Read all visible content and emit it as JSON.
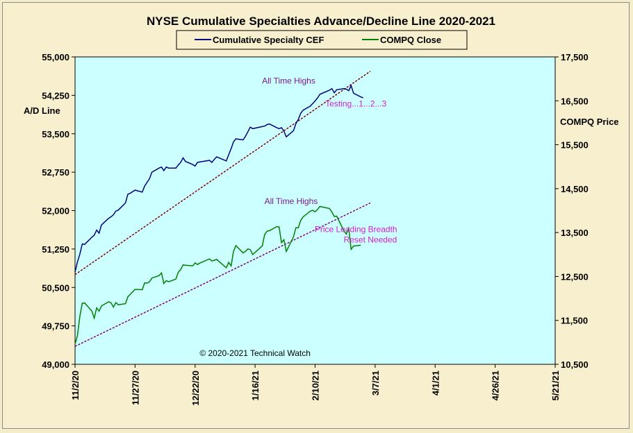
{
  "chart_data": {
    "type": "line",
    "title": "NYSE Cumulative  Specialties  Advance/Decline  Line  2020-2021",
    "y_left_label": "A/D Line",
    "y_right_label": "COMPQ Price",
    "x_ticks": [
      "11/2/20",
      "11/27/20",
      "12/22/20",
      "1/16/21",
      "2/10/21",
      "3/7/21",
      "4/1/21",
      "4/26/21",
      "5/21/21"
    ],
    "x_ticks_dates": [
      "2020-11-02",
      "2020-11-27",
      "2020-12-22",
      "2021-01-16",
      "2021-02-10",
      "2021-03-07",
      "2021-04-01",
      "2021-04-26",
      "2021-05-21"
    ],
    "xlim": [
      "2020-11-02",
      "2021-05-21"
    ],
    "y_left_ticks": [
      "49,000",
      "49,750",
      "50,500",
      "51,250",
      "52,000",
      "52,750",
      "53,500",
      "54,250",
      "55,000"
    ],
    "ylim_left": [
      49000,
      55000
    ],
    "y_right_ticks": [
      "10,500",
      "11,500",
      "12,500",
      "13,500",
      "14,500",
      "15,500",
      "16,500",
      "17,500"
    ],
    "ylim_right": [
      10500,
      17500
    ],
    "grid": false,
    "legend_position": "top-center",
    "colors": {
      "plot_background": "#ccffff",
      "page_background": "#f5ecc9",
      "ad_line": "#000080",
      "compq_line": "#008000",
      "ad_trendline": "#800000",
      "compq_trendline": "#800080",
      "annotation_purple": "#7a1a8c",
      "annotation_pink": "#d21bd2"
    },
    "series": [
      {
        "name": "Cumulative Specialty CEF",
        "axis": "left",
        "points": [
          [
            "2020-11-02",
            50800
          ],
          [
            "2020-11-03",
            51000
          ],
          [
            "2020-11-04",
            51150
          ],
          [
            "2020-11-05",
            51350
          ],
          [
            "2020-11-06",
            51340
          ],
          [
            "2020-11-09",
            51480
          ],
          [
            "2020-11-10",
            51520
          ],
          [
            "2020-11-11",
            51620
          ],
          [
            "2020-11-12",
            51560
          ],
          [
            "2020-11-13",
            51720
          ],
          [
            "2020-11-16",
            51850
          ],
          [
            "2020-11-17",
            51880
          ],
          [
            "2020-11-18",
            51920
          ],
          [
            "2020-11-19",
            51990
          ],
          [
            "2020-11-20",
            52010
          ],
          [
            "2020-11-23",
            52150
          ],
          [
            "2020-11-24",
            52320
          ],
          [
            "2020-11-25",
            52340
          ],
          [
            "2020-11-27",
            52400
          ],
          [
            "2020-11-30",
            52360
          ],
          [
            "2020-12-01",
            52480
          ],
          [
            "2020-12-02",
            52550
          ],
          [
            "2020-12-03",
            52620
          ],
          [
            "2020-12-04",
            52750
          ],
          [
            "2020-12-07",
            52830
          ],
          [
            "2020-12-08",
            52850
          ],
          [
            "2020-12-09",
            52780
          ],
          [
            "2020-12-10",
            52850
          ],
          [
            "2020-12-11",
            52830
          ],
          [
            "2020-12-14",
            52830
          ],
          [
            "2020-12-15",
            52890
          ],
          [
            "2020-12-16",
            52940
          ],
          [
            "2020-12-17",
            53030
          ],
          [
            "2020-12-18",
            52960
          ],
          [
            "2020-12-21",
            52900
          ],
          [
            "2020-12-22",
            52870
          ],
          [
            "2020-12-23",
            52940
          ],
          [
            "2020-12-24",
            52950
          ],
          [
            "2020-12-28",
            52980
          ],
          [
            "2020-12-29",
            52940
          ],
          [
            "2020-12-30",
            53000
          ],
          [
            "2020-12-31",
            53050
          ],
          [
            "2021-01-04",
            52970
          ],
          [
            "2021-01-05",
            53090
          ],
          [
            "2021-01-06",
            53210
          ],
          [
            "2021-01-07",
            53340
          ],
          [
            "2021-01-08",
            53400
          ],
          [
            "2021-01-11",
            53380
          ],
          [
            "2021-01-12",
            53450
          ],
          [
            "2021-01-13",
            53540
          ],
          [
            "2021-01-14",
            53630
          ],
          [
            "2021-01-15",
            53600
          ],
          [
            "2021-01-19",
            53640
          ],
          [
            "2021-01-20",
            53650
          ],
          [
            "2021-01-21",
            53680
          ],
          [
            "2021-01-22",
            53690
          ],
          [
            "2021-01-25",
            53620
          ],
          [
            "2021-01-26",
            53600
          ],
          [
            "2021-01-27",
            53620
          ],
          [
            "2021-01-28",
            53550
          ],
          [
            "2021-01-29",
            53440
          ],
          [
            "2021-02-01",
            53560
          ],
          [
            "2021-02-02",
            53700
          ],
          [
            "2021-02-03",
            53780
          ],
          [
            "2021-02-04",
            53900
          ],
          [
            "2021-02-05",
            53960
          ],
          [
            "2021-02-08",
            54040
          ],
          [
            "2021-02-09",
            54090
          ],
          [
            "2021-02-10",
            54140
          ],
          [
            "2021-02-11",
            54200
          ],
          [
            "2021-02-12",
            54270
          ],
          [
            "2021-02-16",
            54350
          ],
          [
            "2021-02-17",
            54380
          ],
          [
            "2021-02-18",
            54300
          ],
          [
            "2021-02-19",
            54360
          ],
          [
            "2021-02-22",
            54380
          ],
          [
            "2021-02-23",
            54370
          ],
          [
            "2021-02-24",
            54340
          ],
          [
            "2021-02-25",
            54440
          ],
          [
            "2021-02-26",
            54290
          ],
          [
            "2021-03-01",
            54220
          ],
          [
            "2021-03-02",
            54200
          ]
        ]
      },
      {
        "name": "COMPQ Close",
        "axis": "right",
        "points": [
          [
            "2020-11-02",
            10957
          ],
          [
            "2020-11-03",
            11161
          ],
          [
            "2020-11-04",
            11590
          ],
          [
            "2020-11-05",
            11890
          ],
          [
            "2020-11-06",
            11895
          ],
          [
            "2020-11-09",
            11713
          ],
          [
            "2020-11-10",
            11553
          ],
          [
            "2020-11-11",
            11786
          ],
          [
            "2020-11-12",
            11710
          ],
          [
            "2020-11-13",
            11829
          ],
          [
            "2020-11-16",
            11924
          ],
          [
            "2020-11-17",
            11899
          ],
          [
            "2020-11-18",
            11802
          ],
          [
            "2020-11-19",
            11905
          ],
          [
            "2020-11-20",
            11855
          ],
          [
            "2020-11-23",
            11881
          ],
          [
            "2020-11-24",
            12037
          ],
          [
            "2020-11-25",
            12094
          ],
          [
            "2020-11-27",
            12206
          ],
          [
            "2020-11-30",
            12199
          ],
          [
            "2020-12-01",
            12355
          ],
          [
            "2020-12-02",
            12349
          ],
          [
            "2020-12-03",
            12377
          ],
          [
            "2020-12-04",
            12464
          ],
          [
            "2020-12-07",
            12519
          ],
          [
            "2020-12-08",
            12583
          ],
          [
            "2020-12-09",
            12339
          ],
          [
            "2020-12-10",
            12406
          ],
          [
            "2020-12-11",
            12378
          ],
          [
            "2020-12-14",
            12440
          ],
          [
            "2020-12-15",
            12596
          ],
          [
            "2020-12-16",
            12658
          ],
          [
            "2020-12-17",
            12764
          ],
          [
            "2020-12-18",
            12756
          ],
          [
            "2020-12-21",
            12743
          ],
          [
            "2020-12-22",
            12808
          ],
          [
            "2020-12-23",
            12772
          ],
          [
            "2020-12-24",
            12805
          ],
          [
            "2020-12-28",
            12900
          ],
          [
            "2020-12-29",
            12851
          ],
          [
            "2020-12-30",
            12870
          ],
          [
            "2020-12-31",
            12888
          ],
          [
            "2021-01-04",
            12698
          ],
          [
            "2021-01-05",
            12819
          ],
          [
            "2021-01-06",
            12741
          ],
          [
            "2021-01-07",
            13067
          ],
          [
            "2021-01-08",
            13202
          ],
          [
            "2021-01-11",
            13036
          ],
          [
            "2021-01-12",
            13072
          ],
          [
            "2021-01-13",
            13128
          ],
          [
            "2021-01-14",
            13112
          ],
          [
            "2021-01-15",
            12999
          ],
          [
            "2021-01-19",
            13197
          ],
          [
            "2021-01-20",
            13457
          ],
          [
            "2021-01-21",
            13530
          ],
          [
            "2021-01-22",
            13543
          ],
          [
            "2021-01-25",
            13635
          ],
          [
            "2021-01-26",
            13627
          ],
          [
            "2021-01-27",
            13271
          ],
          [
            "2021-01-28",
            13337
          ],
          [
            "2021-01-29",
            13071
          ],
          [
            "2021-02-01",
            13403
          ],
          [
            "2021-02-02",
            13612
          ],
          [
            "2021-02-03",
            13610
          ],
          [
            "2021-02-04",
            13778
          ],
          [
            "2021-02-05",
            13856
          ],
          [
            "2021-02-08",
            13988
          ],
          [
            "2021-02-09",
            14007
          ],
          [
            "2021-02-10",
            13973
          ],
          [
            "2021-02-11",
            14025
          ],
          [
            "2021-02-12",
            14095
          ],
          [
            "2021-02-16",
            14047
          ],
          [
            "2021-02-17",
            13966
          ],
          [
            "2021-02-18",
            13865
          ],
          [
            "2021-02-19",
            13874
          ],
          [
            "2021-02-22",
            13534
          ],
          [
            "2021-02-23",
            13465
          ],
          [
            "2021-02-24",
            13597
          ],
          [
            "2021-02-25",
            13119
          ],
          [
            "2021-02-26",
            13192
          ],
          [
            "2021-03-01",
            13212
          ]
        ]
      }
    ],
    "trendlines": [
      {
        "axis": "left",
        "from": [
          "2020-11-02",
          50750
        ],
        "to": [
          "2021-03-05",
          54720
        ]
      },
      {
        "axis": "left",
        "from": [
          "2020-11-02",
          49350
        ],
        "to": [
          "2021-03-05",
          52150
        ]
      }
    ],
    "annotations": [
      {
        "text": "All Time Highs",
        "at": [
          "2021-01-30",
          54480
        ],
        "axis": "left",
        "color": "purple"
      },
      {
        "text": "Testing...1...2...3",
        "at": [
          "2021-02-27",
          54030
        ],
        "axis": "left",
        "color": "pink"
      },
      {
        "text": "All Time Highs",
        "at": [
          "2021-01-31",
          52130
        ],
        "axis": "left",
        "color": "purple"
      },
      {
        "text": "Price Leading  Breadth",
        "at": [
          "2021-02-27",
          51580
        ],
        "axis": "left",
        "color": "pink"
      },
      {
        "text": "Reset Needed",
        "at": [
          "2021-03-05",
          51380
        ],
        "axis": "left",
        "color": "pink"
      },
      {
        "text": "© 2020-2021  Technical  Watch",
        "at": [
          "2021-01-16",
          49160
        ],
        "axis": "left",
        "color": "black"
      }
    ]
  }
}
